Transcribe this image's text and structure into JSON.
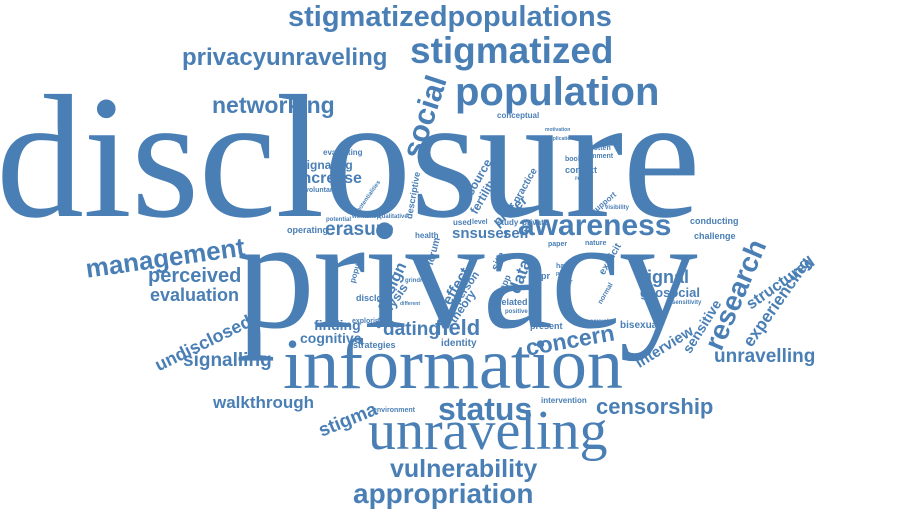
{
  "color": "#4a7fb5",
  "words": {
    "disclosure": "disclosure",
    "privacy": "privacy",
    "information": "information",
    "unraveling": "unraveling",
    "stigmatizedpopulations": "stigmatizedpopulations",
    "privacyunraveling": "privacyunraveling",
    "stigmatized": "stigmatized",
    "population": "population",
    "networking": "networking",
    "social": "social",
    "management": "management",
    "erasure": "erasure",
    "awareness": "awareness",
    "research": "research",
    "perceived": "perceived",
    "evaluation": "evaluation",
    "undisclosed": "undisclosed",
    "signalling": "signalling",
    "walkthrough": "walkthrough",
    "stigma": "stigma",
    "status": "status",
    "censorship": "censorship",
    "vulnerability": "vulnerability",
    "appropriation": "appropriation",
    "unravelling": "unravelling",
    "experiencing": "experiencing",
    "structured": "structured",
    "concern": "concern",
    "field": "field",
    "dating": "dating",
    "finding": "finding",
    "cognitive": "cognitive",
    "strategies": "strategies",
    "identity": "identity",
    "signal": "signal",
    "geosocial": "geosocial",
    "sensitive": "sensitive",
    "interview": "interview",
    "bisexual": "bisexual",
    "design": "design",
    "analysis": "analysis",
    "effect": "effect",
    "data": "data",
    "snsuser": "snsuser",
    "self": "self",
    "increase": "increase",
    "signaling": "signaling",
    "evaluating": "evaluating",
    "voluntary": "voluntary",
    "operating": "operating",
    "conducting": "conducting",
    "challenge": "challenge",
    "present": "present",
    "intervention": "intervention",
    "environment": "environment",
    "exploring": "exploring",
    "disclose": "disclose",
    "popular": "popular",
    "health": "health",
    "context": "context",
    "bookup": "bookup",
    "forgotten": "forgotten",
    "comment": "comment",
    "conceptual": "conceptual",
    "resource": "resource",
    "fertility": "fertility",
    "prefer": "prefer",
    "practice": "practice",
    "descriptive": "descriptive",
    "theory": "theory",
    "person": "person",
    "related": "related",
    "positive": "positive",
    "gdpr": "gdpr",
    "used": "used",
    "study": "study",
    "private": "private",
    "paper": "paper",
    "visibility": "visibility",
    "nature": "nature",
    "have": "have",
    "explicit": "explicit",
    "normal": "normal",
    "system": "system",
    "profile": "profile",
    "motivation": "motivation",
    "application": "application",
    "report": "report",
    "support": "support",
    "level": "level",
    "forum": "forum",
    "site": "site",
    "app": "app",
    "sensitivity": "sensitivity",
    "potentialities": "potentialities",
    "workshop": "workshop",
    "qualitative": "qualitative",
    "potential": "potential",
    "different": "different",
    "grindr": "grindr",
    "sexual": "sexual"
  }
}
